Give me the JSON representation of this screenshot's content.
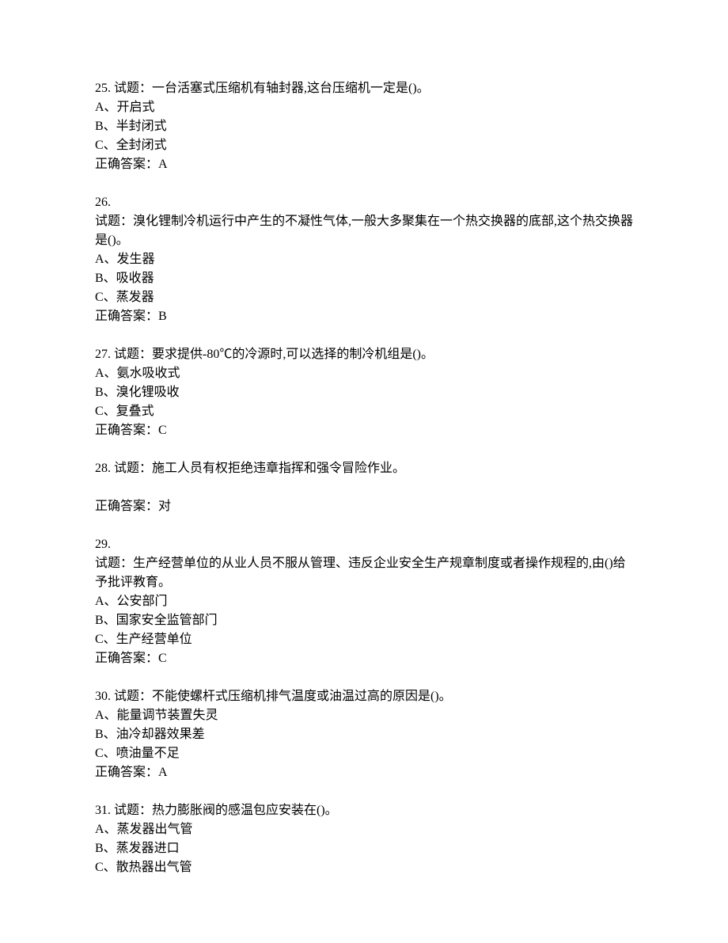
{
  "questions": [
    {
      "number": "25.",
      "prompt": "试题：一台活塞式压缩机有轴封器,这台压缩机一定是()。",
      "options": [
        "A、开启式",
        "B、半封闭式",
        "C、全封闭式"
      ],
      "answer": "正确答案：A"
    },
    {
      "number": "26.",
      "prompt": "试题：溴化锂制冷机运行中产生的不凝性气体,一般大多聚集在一个热交换器的底部,这个热交换器是()。",
      "options": [
        "A、发生器",
        "B、吸收器",
        "C、蒸发器"
      ],
      "answer": "正确答案：B"
    },
    {
      "number": "27.",
      "prompt": "试题：要求提供-80℃的冷源时,可以选择的制冷机组是()。",
      "options": [
        "A、氨水吸收式",
        "B、溴化锂吸收",
        "C、复叠式"
      ],
      "answer": "正确答案：C"
    },
    {
      "number": "28.",
      "prompt": "试题：施工人员有权拒绝违章指挥和强令冒险作业。",
      "options": [],
      "answer": "正确答案：对"
    },
    {
      "number": "29.",
      "prompt": "试题：生产经营单位的从业人员不服从管理、违反企业安全生产规章制度或者操作规程的,由()给予批评教育。",
      "options": [
        "A、公安部门",
        "B、国家安全监管部门",
        "C、生产经营单位"
      ],
      "answer": "正确答案：C"
    },
    {
      "number": "30.",
      "prompt": "试题：不能使螺杆式压缩机排气温度或油温过高的原因是()。",
      "options": [
        "A、能量调节装置失灵",
        "B、油冷却器效果差",
        "C、喷油量不足"
      ],
      "answer": "正确答案：A"
    },
    {
      "number": "31.",
      "prompt": "试题：热力膨胀阀的感温包应安装在()。",
      "options": [
        "A、蒸发器出气管",
        "B、蒸发器进口",
        "C、散热器出气管"
      ],
      "answer": ""
    }
  ],
  "inline_numbers": [
    "25",
    "27",
    "28",
    "30",
    "31"
  ],
  "standalone_numbers": [
    "26",
    "29"
  ],
  "q28_blank_before_answer": true
}
